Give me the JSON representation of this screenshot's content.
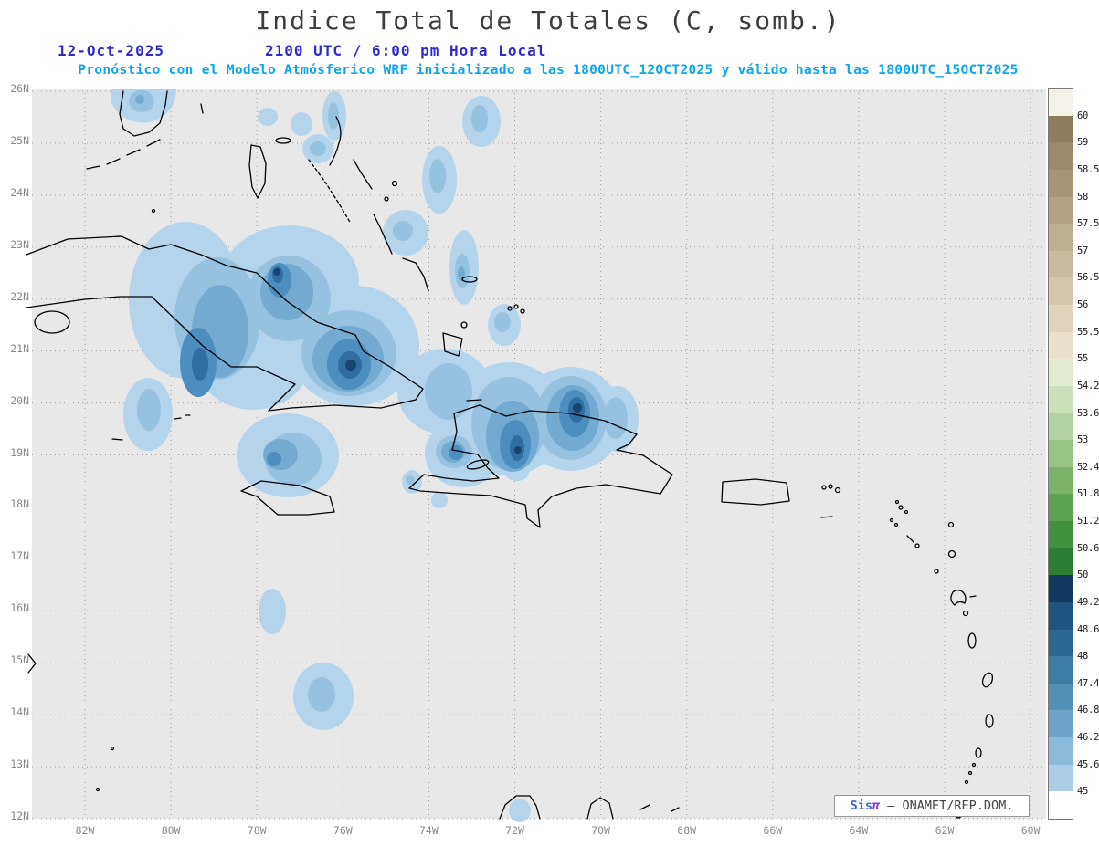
{
  "header": {
    "title": "Indice Total de Totales (C, somb.)",
    "date": "12-Oct-2025",
    "time": "2100 UTC / 6:00 pm Hora Local",
    "subtitle": "Pronóstico con el Modelo Atmósferico WRF inicializado a las 1800UTC_12OCT2025 y válido hasta las 1800UTC_15OCT2025",
    "colors": {
      "title": "#3d3d3d",
      "datetime": "#2b2bd0",
      "subtitle": "#09a5ee"
    }
  },
  "map": {
    "background": "#e8e8e8",
    "lat_labels": [
      "26N",
      "25N",
      "24N",
      "23N",
      "22N",
      "21N",
      "20N",
      "19N",
      "18N",
      "17N",
      "16N",
      "15N",
      "14N",
      "13N",
      "12N"
    ],
    "lon_labels": [
      "82W",
      "80W",
      "78W",
      "76W",
      "74W",
      "72W",
      "70W",
      "68W",
      "66W",
      "64W",
      "62W",
      "60W"
    ],
    "attribution": {
      "brand": "Sis",
      "symbol": "π",
      "suffix": " — ONAMET/REP.DOM."
    }
  },
  "colorbar": {
    "labels": [
      "60",
      "59",
      "58.5",
      "58",
      "57.5",
      "57",
      "56.5",
      "56",
      "55.5",
      "55",
      "54.2",
      "53.6",
      "53",
      "52.4",
      "51.8",
      "51.2",
      "50.6",
      "50",
      "49.2",
      "48.6",
      "48",
      "47.4",
      "46.8",
      "46.2",
      "45.6",
      "45"
    ],
    "segment_colors": [
      "#f4f1e8",
      "#8d7d5c",
      "#998a69",
      "#a59776",
      "#b1a384",
      "#bdaf92",
      "#c9bba0",
      "#d4c7ae",
      "#dfd3bd",
      "#eadfcc",
      "#e2ecd4",
      "#cbe0ba",
      "#b2d39f",
      "#97c383",
      "#7ab368",
      "#5da250",
      "#41913e",
      "#2c7e33",
      "#123a60",
      "#1d5480",
      "#2c6892",
      "#3d7ca4",
      "#5390b8",
      "#6da4c8",
      "#8bb9d9",
      "#aacee8",
      "#ffffff"
    ]
  },
  "shading_palette": [
    "#b4d4ec",
    "#95c2e0",
    "#72aad2",
    "#4d8ec0",
    "#2f6da2",
    "#16456e"
  ]
}
